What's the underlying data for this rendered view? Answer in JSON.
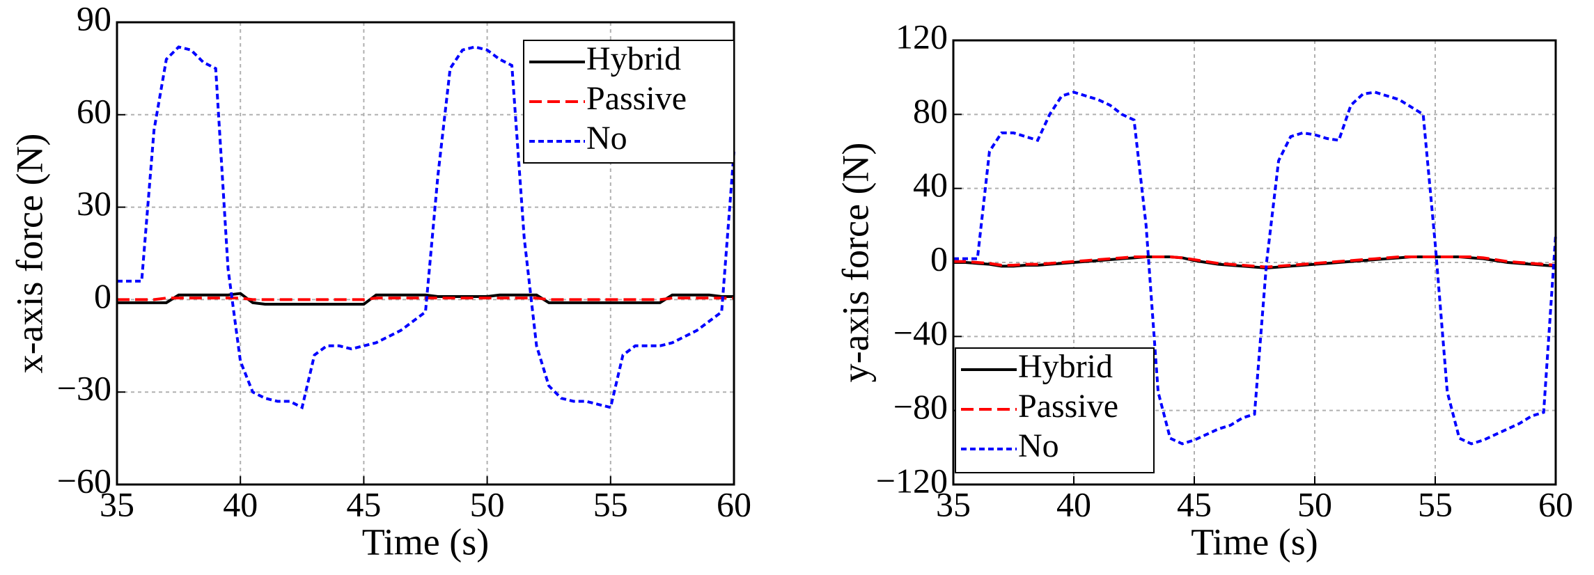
{
  "chart_data": [
    {
      "type": "line",
      "ylabel": "x-axis force (N)",
      "xlabel": "Time (s)",
      "legend": "upper right",
      "grid": true,
      "xlim": [
        35,
        60
      ],
      "xticks": [
        35,
        40,
        45,
        50,
        55,
        60
      ],
      "ylim": [
        -60,
        90
      ],
      "yticks": [
        {
          "value": -60,
          "label": "−60"
        },
        {
          "value": -30,
          "label": "−30"
        },
        0,
        30,
        60,
        90
      ],
      "x": [
        35,
        35.5,
        36,
        36.5,
        37,
        37.5,
        38,
        38.5,
        39,
        39.5,
        40,
        40.5,
        41,
        41.5,
        42,
        42.5,
        43,
        43.5,
        44,
        44.5,
        45,
        45.5,
        46,
        46.5,
        47,
        47.5,
        48,
        48.5,
        49,
        49.5,
        50,
        50.5,
        51,
        51.5,
        52,
        52.5,
        53,
        53.5,
        54,
        54.5,
        55,
        55.5,
        56,
        56.5,
        57,
        57.5,
        58,
        58.5,
        59,
        59.5,
        60
      ],
      "series": [
        {
          "name": "Hybrid",
          "color": "#000000",
          "style": "solid",
          "values": [
            -1,
            -1,
            -1,
            -1,
            -1,
            1.5,
            1.5,
            1.5,
            1.5,
            1.5,
            2,
            -1,
            -1.5,
            -1.5,
            -1.5,
            -1.5,
            -1.5,
            -1.5,
            -1.5,
            -1.5,
            -1.5,
            1.5,
            1.5,
            1.5,
            1.5,
            1.5,
            1,
            1,
            1,
            1,
            1,
            1.5,
            1.5,
            1.5,
            1.5,
            -1,
            -1,
            -1,
            -1,
            -1,
            -1,
            -1,
            -1,
            -1,
            -1,
            1.5,
            1.5,
            1.5,
            1.5,
            1,
            1
          ]
        },
        {
          "name": "Passive",
          "color": "#ff0000",
          "style": "dashed",
          "values": [
            0,
            0,
            0,
            0,
            0.5,
            0.5,
            0.5,
            0.5,
            0.5,
            0.5,
            0.5,
            0,
            0,
            0,
            0,
            0,
            0,
            0,
            0,
            0,
            0,
            0.5,
            0.5,
            0.5,
            0.5,
            0.5,
            0.5,
            0.5,
            0.5,
            0.5,
            0.5,
            0.5,
            0.5,
            0.5,
            0.5,
            0,
            0,
            0,
            0,
            0,
            0,
            0,
            0,
            0,
            0,
            0.5,
            0.5,
            0.5,
            0.5,
            0.5,
            0.5
          ]
        },
        {
          "name": "No",
          "color": "#0000ff",
          "style": "dotted",
          "values": [
            6,
            6,
            6,
            55,
            78,
            82,
            81,
            77,
            75,
            10,
            -20,
            -30,
            -32,
            -33,
            -33,
            -35,
            -18,
            -15,
            -15,
            -16,
            -15,
            -14,
            -12,
            -10,
            -7,
            -4,
            40,
            75,
            81,
            82,
            81,
            78,
            76,
            20,
            -15,
            -28,
            -32,
            -33,
            -33,
            -34,
            -35,
            -18,
            -15,
            -15,
            -15,
            -14,
            -12,
            -10,
            -7,
            -4,
            48
          ]
        }
      ]
    },
    {
      "type": "line",
      "ylabel": "y-axis force (N)",
      "xlabel": "Time (s)",
      "legend": "lower left",
      "grid": true,
      "xlim": [
        35,
        60
      ],
      "xticks": [
        35,
        40,
        45,
        50,
        55,
        60
      ],
      "ylim": [
        -120,
        120
      ],
      "yticks": [
        {
          "value": -120,
          "label": "−120"
        },
        {
          "value": -80,
          "label": "−80"
        },
        {
          "value": -40,
          "label": "−40"
        },
        0,
        40,
        80,
        120
      ],
      "x": [
        35,
        35.5,
        36,
        36.5,
        37,
        37.5,
        38,
        38.5,
        39,
        39.5,
        40,
        40.5,
        41,
        41.5,
        42,
        42.5,
        43,
        43.5,
        44,
        44.5,
        45,
        45.5,
        46,
        46.5,
        47,
        47.5,
        48,
        48.5,
        49,
        49.5,
        50,
        50.5,
        51,
        51.5,
        52,
        52.5,
        53,
        53.5,
        54,
        54.5,
        55,
        55.5,
        56,
        56.5,
        57,
        57.5,
        58,
        58.5,
        59,
        59.5,
        60
      ],
      "series": [
        {
          "name": "Hybrid",
          "color": "#000000",
          "style": "solid",
          "values": [
            0,
            0,
            -0.5,
            -1,
            -2,
            -2,
            -1.5,
            -1.5,
            -1,
            -0.5,
            0,
            0.5,
            1,
            1.5,
            2,
            2.5,
            3,
            3,
            3,
            2.5,
            1,
            0,
            -1,
            -1.5,
            -2,
            -2.5,
            -3,
            -2.5,
            -2,
            -1.5,
            -1,
            -0.5,
            0,
            0.5,
            1,
            1.5,
            2,
            2.5,
            3,
            3,
            3,
            3,
            3,
            2.5,
            2,
            1,
            0,
            -0.5,
            -1,
            -1.5,
            -2
          ]
        },
        {
          "name": "Passive",
          "color": "#ff0000",
          "style": "dashed",
          "values": [
            0.5,
            0.5,
            0,
            -0.5,
            -1.5,
            -1.5,
            -1,
            -1,
            -0.5,
            0,
            0.5,
            1,
            1.5,
            2,
            2.5,
            3,
            3,
            3,
            3,
            2.5,
            1.5,
            0.5,
            -0.5,
            -1,
            -1.5,
            -2,
            -2.5,
            -2,
            -1.5,
            -1,
            -0.5,
            0,
            0.5,
            1,
            1.5,
            2,
            2.5,
            3,
            3,
            3,
            3,
            3,
            3,
            3,
            2.5,
            1.5,
            0.5,
            0,
            -0.5,
            -1,
            -1.5
          ]
        },
        {
          "name": "No",
          "color": "#0000ff",
          "style": "dotted",
          "values": [
            2,
            2,
            2,
            60,
            70,
            70,
            68,
            66,
            80,
            90,
            92,
            90,
            88,
            85,
            80,
            77,
            20,
            -70,
            -95,
            -98,
            -96,
            -93,
            -90,
            -88,
            -84,
            -82,
            0,
            55,
            68,
            70,
            69,
            67,
            66,
            85,
            91,
            92,
            90,
            88,
            84,
            80,
            10,
            -70,
            -95,
            -98,
            -96,
            -93,
            -90,
            -87,
            -83,
            -81,
            15
          ]
        }
      ]
    }
  ]
}
